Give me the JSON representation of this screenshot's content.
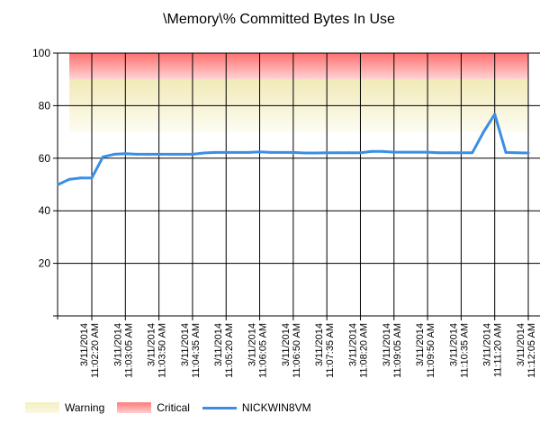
{
  "chart_data": {
    "type": "line",
    "title": "\\Memory\\% Committed Bytes In Use",
    "xlabel": "",
    "ylabel": "",
    "ylim": [
      0,
      100
    ],
    "yticks": [
      20,
      40,
      60,
      80,
      100
    ],
    "xtick_labels": [
      "3/11/2014 11:02:20 AM",
      "3/11/2014 11:03:05 AM",
      "3/11/2014 11:03:50 AM",
      "3/11/2014 11:04:35 AM",
      "3/11/2014 11:05:20 AM",
      "3/11/2014 11:06:05 AM",
      "3/11/2014 11:06:50 AM",
      "3/11/2014 11:07:35 AM",
      "3/11/2014 11:08:20 AM",
      "3/11/2014 11:09:05 AM",
      "3/11/2014 11:09:50 AM",
      "3/11/2014 11:10:35 AM",
      "3/11/2014 11:11:20 AM",
      "3/11/2014 11:12:05 AM"
    ],
    "thresholds": {
      "warning": {
        "label": "Warning",
        "from": 70,
        "to": 90,
        "color": "#f4efc0"
      },
      "critical": {
        "label": "Critical",
        "from": 90,
        "to": 100,
        "color": "#ff7a7a"
      }
    },
    "series": [
      {
        "name": "NICKWIN8VM",
        "color": "#3a8ee6",
        "x": [
          "11:01:35",
          "11:01:50",
          "11:02:05",
          "11:02:20",
          "11:02:35",
          "11:02:50",
          "11:03:05",
          "11:03:20",
          "11:03:35",
          "11:03:50",
          "11:04:05",
          "11:04:20",
          "11:04:35",
          "11:04:50",
          "11:05:05",
          "11:05:20",
          "11:05:35",
          "11:05:50",
          "11:06:05",
          "11:06:20",
          "11:06:35",
          "11:06:50",
          "11:07:05",
          "11:07:20",
          "11:07:35",
          "11:07:50",
          "11:08:05",
          "11:08:20",
          "11:08:35",
          "11:08:50",
          "11:09:05",
          "11:09:20",
          "11:09:35",
          "11:09:50",
          "11:10:05",
          "11:10:20",
          "11:10:35",
          "11:10:50",
          "11:11:05",
          "11:11:20",
          "11:11:35",
          "11:11:50",
          "11:12:05"
        ],
        "values": [
          50,
          52,
          52.5,
          52.5,
          60.5,
          61.5,
          61.7,
          61.5,
          61.5,
          61.5,
          61.5,
          61.5,
          61.5,
          62,
          62.2,
          62.2,
          62.2,
          62.2,
          62.4,
          62.2,
          62.2,
          62.2,
          62,
          62,
          62.1,
          62.1,
          62.1,
          62.1,
          62.6,
          62.6,
          62.3,
          62.3,
          62.3,
          62.3,
          62.1,
          62.1,
          62.1,
          62.1,
          70,
          76.7,
          62.2,
          62.1,
          62
        ]
      }
    ],
    "legend": {
      "position": "bottom-left",
      "items": [
        "Warning",
        "Critical",
        "NICKWIN8VM"
      ]
    },
    "grid": true
  }
}
